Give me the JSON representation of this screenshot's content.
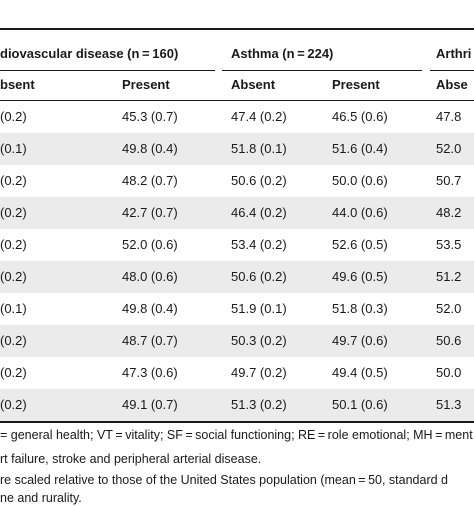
{
  "groups": [
    {
      "label": "diovascular disease (n = 160)"
    },
    {
      "label": "Asthma (n = 224)"
    },
    {
      "label": "Arthri"
    }
  ],
  "subheaders": [
    "bsent",
    "Present",
    "Absent",
    "Present",
    "Abse"
  ],
  "rows": [
    {
      "c0": "(0.2)",
      "c1": "45.3 (0.7)",
      "c2": "47.4 (0.2)",
      "c3": "46.5 (0.6)",
      "c4": "47.8"
    },
    {
      "c0": "(0.1)",
      "c1": "49.8 (0.4)",
      "c2": "51.8 (0.1)",
      "c3": "51.6 (0.4)",
      "c4": "52.0"
    },
    {
      "c0": "(0.2)",
      "c1": "48.2 (0.7)",
      "c2": "50.6 (0.2)",
      "c3": "50.0 (0.6)",
      "c4": "50.7"
    },
    {
      "c0": "(0.2)",
      "c1": "42.7 (0.7)",
      "c2": "46.4 (0.2)",
      "c3": "44.0 (0.6)",
      "c4": "48.2"
    },
    {
      "c0": "(0.2)",
      "c1": "52.0 (0.6)",
      "c2": "53.4 (0.2)",
      "c3": "52.6 (0.5)",
      "c4": "53.5"
    },
    {
      "c0": "(0.2)",
      "c1": "48.0 (0.6)",
      "c2": "50.6 (0.2)",
      "c3": "49.6 (0.5)",
      "c4": "51.2"
    },
    {
      "c0": "(0.1)",
      "c1": "49.8 (0.4)",
      "c2": "51.9 (0.1)",
      "c3": "51.8 (0.3)",
      "c4": "52.0"
    },
    {
      "c0": "(0.2)",
      "c1": "48.7 (0.7)",
      "c2": "50.3 (0.2)",
      "c3": "49.7 (0.6)",
      "c4": "50.6"
    },
    {
      "c0": "(0.2)",
      "c1": "47.3 (0.6)",
      "c2": "49.7 (0.2)",
      "c3": "49.4 (0.5)",
      "c4": "50.0"
    },
    {
      "c0": "(0.2)",
      "c1": "49.1 (0.7)",
      "c2": "51.3 (0.2)",
      "c3": "50.1 (0.6)",
      "c4": "51.3"
    }
  ],
  "footnotes": [
    "= general health; VT = vitality; SF = social functioning; RE = role emotional; MH = ment",
    "rt failure, stroke and peripheral arterial disease.",
    "re scaled relative to those of the United States population (mean = 50, standard d",
    "ne and rurality."
  ],
  "colors": {
    "text": "#1a1a1a",
    "band": "#ebebeb",
    "rule": "#1a1a1a"
  }
}
